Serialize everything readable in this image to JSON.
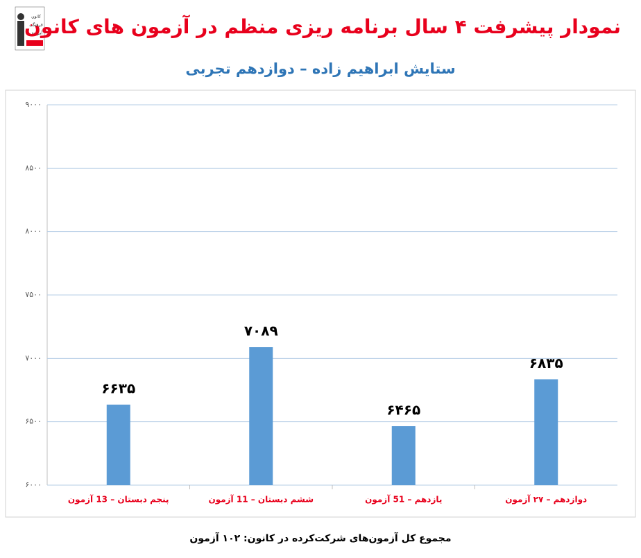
{
  "chart_data": {
    "type": "bar",
    "title": "نمودار پیشرفت ۴ سال برنامه ریزی منظم در آزمون های کانون",
    "subtitle": "ستایش ابراهیم زاده – دوازدهم تجربی",
    "logo_text": [
      "کانون",
      "فرهنگی",
      "آموزش"
    ],
    "categories": [
      "پنجم دبستان – 13 آزمون",
      "ششم دبستان – 11 آزمون",
      "یازدهم – 51 آزمون",
      "دوازدهم – ۲۷ آزمون"
    ],
    "values": [
      6635,
      7089,
      6465,
      6835
    ],
    "value_labels": [
      "۶۶۳۵",
      "۷۰۸۹",
      "۶۴۶۵",
      "۶۸۳۵"
    ],
    "color": "#5b9bd5",
    "ylim": [
      6000,
      9000
    ],
    "yticks": [
      {
        "value": 6000,
        "label": "۶۰۰۰"
      },
      {
        "value": 6500,
        "label": "۶۵۰۰"
      },
      {
        "value": 7000,
        "label": "۷۰۰۰"
      },
      {
        "value": 7500,
        "label": "۷۵۰۰"
      },
      {
        "value": 8000,
        "label": "۸۰۰۰"
      },
      {
        "value": 8500,
        "label": "۸۵۰۰"
      },
      {
        "value": 9000,
        "label": "۹۰۰۰"
      }
    ],
    "grid": true,
    "footer": "مجموع کل آزمون‌های شرکت‌کرده در کانون: ۱۰۲ آزمون"
  }
}
